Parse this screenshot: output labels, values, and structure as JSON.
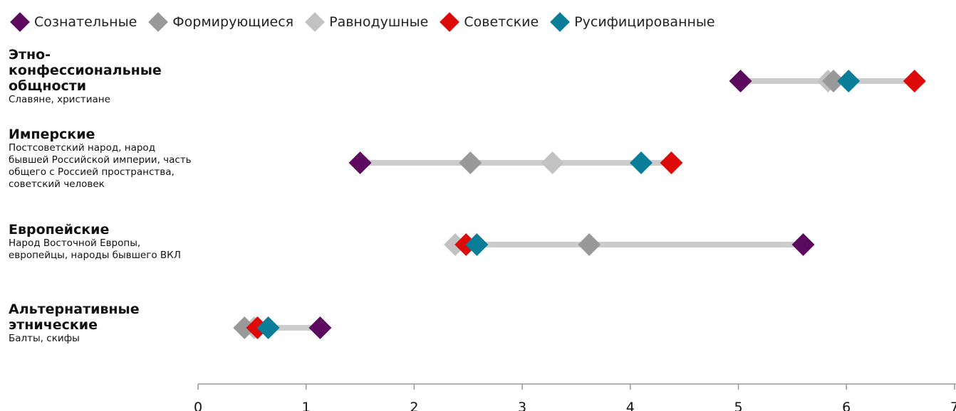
{
  "chart_data": {
    "type": "dot-range",
    "legend": [
      {
        "name": "Сознательные",
        "color": "#5b0a5f"
      },
      {
        "name": "Формирующиеся",
        "color": "#999999"
      },
      {
        "name": "Равнодушные",
        "color": "#c2c2c2"
      },
      {
        "name": "Советские",
        "color": "#dd0a0a"
      },
      {
        "name": "Русифицированные",
        "color": "#0a7d99"
      }
    ],
    "categories": [
      {
        "title": "Этно-конфессиональные общности",
        "subtitle": "Славяне, христиане",
        "values": {
          "Сознательные": 5.02,
          "Формирующиеся": 5.88,
          "Равнодушные": 5.83,
          "Советские": 6.63,
          "Русифицированные": 6.02
        }
      },
      {
        "title": "Имперские",
        "subtitle": "Постсоветский народ, народ бывшей Российской империи, часть общего с Россией пространства, советский человек",
        "values": {
          "Сознательные": 1.5,
          "Формирующиеся": 2.52,
          "Равнодушные": 3.28,
          "Советские": 4.38,
          "Русифицированные": 4.1
        }
      },
      {
        "title": "Европейские",
        "subtitle": "Народ Восточной Европы, европейцы, народы бывшего ВКЛ",
        "values": {
          "Сознательные": 5.6,
          "Формирующиеся": 3.62,
          "Равнодушные": 2.38,
          "Советские": 2.48,
          "Русифицированные": 2.58
        }
      },
      {
        "title": "Альтернативные этнические",
        "subtitle": "Балты, скифы",
        "values": {
          "Сознательные": 1.13,
          "Формирующиеся": 0.43,
          "Равнодушные": 0.52,
          "Советские": 0.55,
          "Русифицированные": 0.65
        }
      }
    ],
    "x_ticks": [
      "0",
      "1",
      "2",
      "3",
      "4",
      "5",
      "6",
      "7"
    ],
    "xlim": [
      0,
      7
    ],
    "range_bar_color": "#cccccc"
  }
}
